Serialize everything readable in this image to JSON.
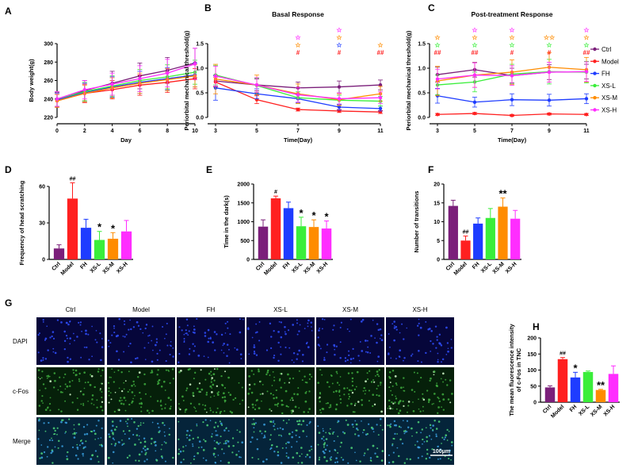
{
  "groups": [
    "Ctrl",
    "Model",
    "FH",
    "XS-L",
    "XS-M",
    "XS-H"
  ],
  "colors": {
    "Ctrl": "#7b1f7a",
    "Model": "#ff2020",
    "FH": "#1e3cff",
    "XS-L": "#3aee3a",
    "XS-M": "#ff8c00",
    "XS-H": "#ff2dff"
  },
  "chart_data": [
    {
      "panel": "A",
      "type": "line",
      "title": "",
      "xlabel": "Day",
      "ylabel": "Body weight(g)",
      "x": [
        0,
        2,
        4,
        6,
        8,
        10
      ],
      "xlim": [
        0,
        10
      ],
      "ylim": [
        220,
        300
      ],
      "yticks": [
        220,
        240,
        260,
        280,
        300
      ],
      "series": [
        {
          "name": "Ctrl",
          "values": [
            239,
            249,
            257,
            265,
            271,
            279
          ],
          "err": [
            8,
            11,
            13,
            14,
            14,
            16
          ]
        },
        {
          "name": "Model",
          "values": [
            238,
            246,
            250,
            255,
            258,
            262
          ],
          "err": [
            7,
            10,
            10,
            11,
            11,
            11
          ]
        },
        {
          "name": "FH",
          "values": [
            239,
            247,
            253,
            258,
            262,
            266
          ],
          "err": [
            7,
            10,
            11,
            12,
            12,
            13
          ]
        },
        {
          "name": "XS-L",
          "values": [
            240,
            248,
            254,
            260,
            264,
            269
          ],
          "err": [
            8,
            10,
            11,
            12,
            13,
            13
          ]
        },
        {
          "name": "XS-M",
          "values": [
            238,
            246,
            252,
            257,
            261,
            265
          ],
          "err": [
            7,
            9,
            11,
            11,
            12,
            12
          ]
        },
        {
          "name": "XS-H",
          "values": [
            240,
            250,
            256,
            262,
            268,
            278
          ],
          "err": [
            8,
            10,
            12,
            14,
            15,
            17
          ]
        }
      ]
    },
    {
      "panel": "B",
      "type": "line",
      "title": "Basal Response",
      "xlabel": "Time(Day)",
      "ylabel": "Periorbital mechanical threshold(g)",
      "x": [
        3,
        5,
        7,
        9,
        11
      ],
      "xlim": [
        3,
        11
      ],
      "ylim": [
        0,
        1.5
      ],
      "yticks": [
        "0.0",
        "0.5",
        "1.0",
        "1.5"
      ],
      "series": [
        {
          "name": "Ctrl",
          "values": [
            0.74,
            0.66,
            0.6,
            0.62,
            0.66
          ],
          "err": [
            0.12,
            0.12,
            0.12,
            0.12,
            0.1
          ]
        },
        {
          "name": "Model",
          "values": [
            0.72,
            0.36,
            0.16,
            0.13,
            0.11
          ],
          "err": [
            0.1,
            0.08,
            0.03,
            0.03,
            0.03
          ]
        },
        {
          "name": "FH",
          "values": [
            0.6,
            0.48,
            0.38,
            0.21,
            0.18
          ],
          "err": [
            0.25,
            0.1,
            0.08,
            0.06,
            0.05
          ]
        },
        {
          "name": "XS-L",
          "values": [
            0.86,
            0.65,
            0.4,
            0.35,
            0.33
          ],
          "err": [
            0.2,
            0.15,
            0.12,
            0.1,
            0.1
          ]
        },
        {
          "name": "XS-M",
          "values": [
            0.78,
            0.66,
            0.48,
            0.36,
            0.48
          ],
          "err": [
            0.3,
            0.2,
            0.2,
            0.12,
            0.15
          ]
        },
        {
          "name": "XS-H",
          "values": [
            0.84,
            0.66,
            0.46,
            0.38,
            0.4
          ],
          "err": [
            0.2,
            0.15,
            0.15,
            0.12,
            0.12
          ]
        }
      ],
      "annotations": [
        {
          "x": 7,
          "marks": [
            "☆",
            "☆",
            "#"
          ],
          "colors": [
            "#ff2dff",
            "#ff8c00",
            "#ff2020"
          ]
        },
        {
          "x": 9,
          "marks": [
            "☆",
            "☆",
            "☆",
            "#"
          ],
          "colors": [
            "#ff2dff",
            "#ff8c00",
            "#1e3cff",
            "#ff2020"
          ]
        },
        {
          "x": 11,
          "marks": [
            "☆",
            "##"
          ],
          "colors": [
            "#ff8c00",
            "#ff2020"
          ]
        }
      ]
    },
    {
      "panel": "C",
      "type": "line",
      "title": "Post-treatment Response",
      "xlabel": "Time(Day)",
      "ylabel": "Periorbital mechanical threshold(g)",
      "x": [
        3,
        5,
        7,
        9,
        11
      ],
      "xlim": [
        3,
        11
      ],
      "ylim": [
        0,
        1.5
      ],
      "yticks": [
        "0.0",
        "0.5",
        "1.0",
        "1.5"
      ],
      "series": [
        {
          "name": "Ctrl",
          "values": [
            0.87,
            0.97,
            0.85,
            0.92,
            0.93
          ],
          "err": [
            0.15,
            0.15,
            0.15,
            0.15,
            0.15
          ]
        },
        {
          "name": "Model",
          "values": [
            0.06,
            0.08,
            0.04,
            0.07,
            0.06
          ],
          "err": [
            0.02,
            0.02,
            0.02,
            0.02,
            0.02
          ]
        },
        {
          "name": "FH",
          "values": [
            0.44,
            0.31,
            0.36,
            0.35,
            0.38
          ],
          "err": [
            0.15,
            0.1,
            0.12,
            0.12,
            0.1
          ]
        },
        {
          "name": "XS-L",
          "values": [
            0.66,
            0.72,
            0.88,
            0.93,
            0.92
          ],
          "err": [
            0.2,
            0.2,
            0.2,
            0.25,
            0.22
          ]
        },
        {
          "name": "XS-M",
          "values": [
            0.74,
            0.86,
            0.92,
            1.02,
            0.97
          ],
          "err": [
            0.3,
            0.25,
            0.25,
            0.3,
            0.25
          ]
        },
        {
          "name": "XS-H",
          "values": [
            0.78,
            0.86,
            0.85,
            0.92,
            0.93
          ],
          "err": [
            0.2,
            0.25,
            0.2,
            0.2,
            0.2
          ]
        }
      ],
      "annotations": [
        {
          "x": 3,
          "marks": [
            "☆",
            "☆",
            "##"
          ],
          "colors": [
            "#ff8c00",
            "#3aee3a",
            "#ff2020"
          ]
        },
        {
          "x": 5,
          "marks": [
            "☆",
            "☆",
            "☆",
            "##"
          ],
          "colors": [
            "#ff2dff",
            "#ff8c00",
            "#3aee3a",
            "#ff2020"
          ]
        },
        {
          "x": 7,
          "marks": [
            "☆",
            "☆",
            "☆",
            "#"
          ],
          "colors": [
            "#ff2dff",
            "#ff8c00",
            "#3aee3a",
            "#ff2020"
          ]
        },
        {
          "x": 9,
          "marks": [
            "☆☆",
            "☆",
            "#"
          ],
          "colors": [
            "#ff8c00",
            "#3aee3a",
            "#ff2020"
          ]
        },
        {
          "x": 11,
          "marks": [
            "☆",
            "☆",
            "☆",
            "##"
          ],
          "colors": [
            "#ff2dff",
            "#ff8c00",
            "#3aee3a",
            "#ff2020"
          ]
        }
      ],
      "legend": "right"
    },
    {
      "panel": "D",
      "type": "bar",
      "title": "",
      "xlabel": "",
      "ylabel": "Frequency of head scratching",
      "categories": [
        "Ctrl",
        "Model",
        "FH",
        "XS-L",
        "XS-M",
        "XS-H"
      ],
      "values": [
        9,
        50,
        26,
        16,
        17,
        23
      ],
      "err": [
        3,
        13,
        7,
        7,
        5,
        9
      ],
      "ylim": [
        0,
        60
      ],
      "yticks": [
        0,
        30,
        60
      ],
      "labels": [
        "",
        "##",
        "",
        "*",
        "*",
        ""
      ]
    },
    {
      "panel": "E",
      "type": "bar",
      "title": "",
      "xlabel": "",
      "ylabel": "Time in the dark(s)",
      "categories": [
        "Ctrl",
        "Model",
        "FH",
        "XS-L",
        "XS-M",
        "XS-H"
      ],
      "values": [
        870,
        1620,
        1360,
        880,
        860,
        820
      ],
      "err": [
        180,
        60,
        160,
        240,
        190,
        200
      ],
      "ylim": [
        0,
        2000
      ],
      "yticks": [
        0,
        500,
        1000,
        1500,
        2000
      ],
      "labels": [
        "",
        "#",
        "",
        "*",
        "*",
        "*"
      ]
    },
    {
      "panel": "F",
      "type": "bar",
      "title": "",
      "xlabel": "",
      "ylabel": "Number of transitions",
      "categories": [
        "Ctrl",
        "Model",
        "FH",
        "XS-L",
        "XS-M",
        "XS-H"
      ],
      "values": [
        14.2,
        5,
        9.5,
        11,
        14,
        10.8
      ],
      "err": [
        1.5,
        1.2,
        1.5,
        2.5,
        2.3,
        2.2
      ],
      "ylim": [
        0,
        20
      ],
      "yticks": [
        0,
        5,
        10,
        15,
        20
      ],
      "labels": [
        "",
        "##",
        "",
        "",
        "**",
        ""
      ]
    },
    {
      "panel": "H",
      "type": "bar",
      "title": "",
      "xlabel": "",
      "ylabel": "The mean fluorescence intensity of c-Fos in TNC",
      "categories": [
        "Ctrl",
        "Model",
        "FH",
        "XS-L",
        "XS-M",
        "XS-H"
      ],
      "values": [
        46,
        134,
        77,
        94,
        38,
        88
      ],
      "err": [
        5,
        5,
        16,
        3,
        2,
        25
      ],
      "ylim": [
        0,
        200
      ],
      "yticks": [
        0,
        50,
        100,
        150,
        200
      ],
      "labels": [
        "",
        "##",
        "*",
        "",
        "**",
        ""
      ]
    }
  ],
  "panel_g": {
    "letter": "G",
    "columns": [
      "Ctrl",
      "Model",
      "FH",
      "XS-L",
      "XS-M",
      "XS-H"
    ],
    "rows": [
      "DAPI",
      "c-Fos",
      "Merge"
    ],
    "scale_bar": "100μm"
  }
}
